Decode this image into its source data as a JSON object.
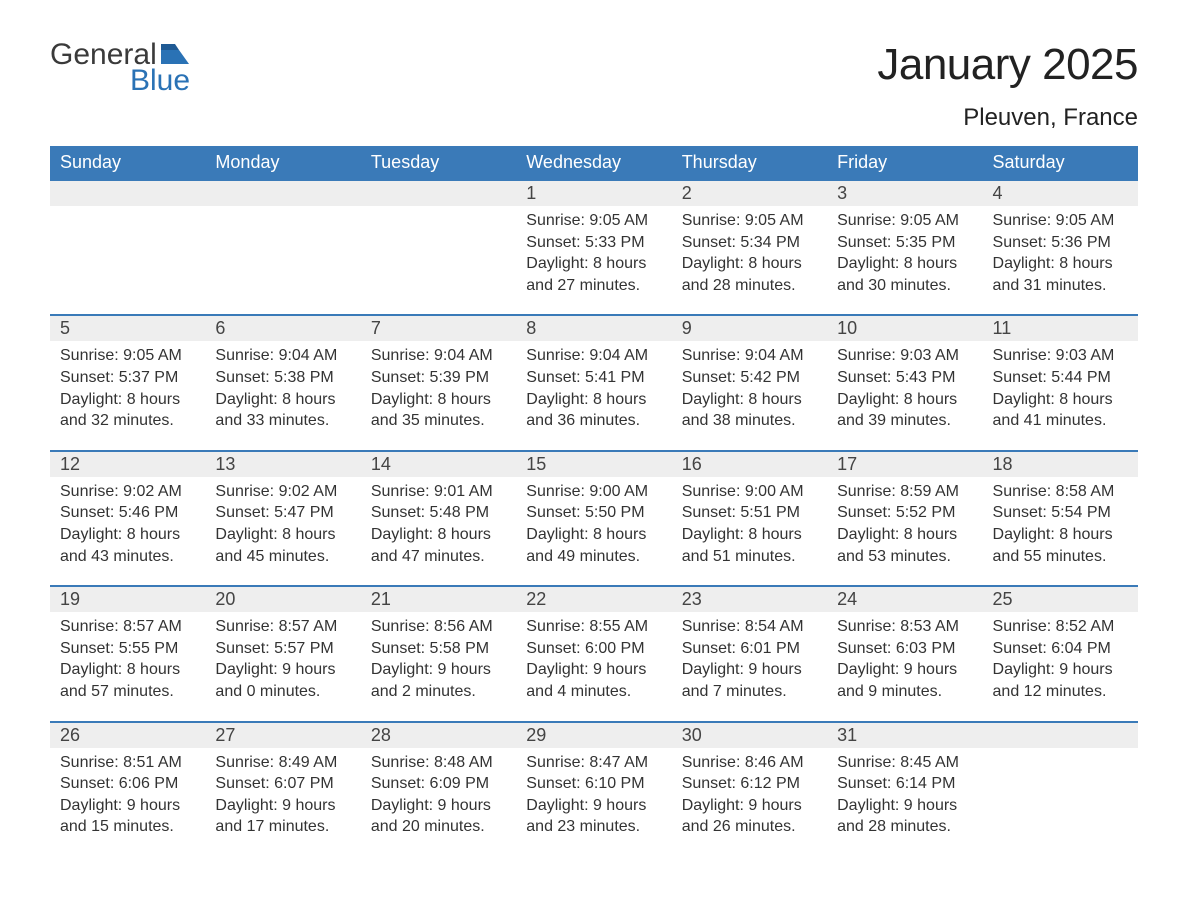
{
  "logo": {
    "line1": "General",
    "line2": "Blue"
  },
  "title": "January 2025",
  "location": "Pleuven, France",
  "colors": {
    "headerBg": "#3a7ab8",
    "headerText": "#ffffff",
    "dayNumBg": "#eeeeee",
    "rowBorder": "#3a7ab8",
    "bodyText": "#333333",
    "logoAccent": "#2a72b5"
  },
  "weekdays": [
    "Sunday",
    "Monday",
    "Tuesday",
    "Wednesday",
    "Thursday",
    "Friday",
    "Saturday"
  ],
  "weeks": [
    [
      null,
      null,
      null,
      {
        "n": "1",
        "sunrise": "Sunrise: 9:05 AM",
        "sunset": "Sunset: 5:33 PM",
        "daylight": "Daylight: 8 hours and 27 minutes."
      },
      {
        "n": "2",
        "sunrise": "Sunrise: 9:05 AM",
        "sunset": "Sunset: 5:34 PM",
        "daylight": "Daylight: 8 hours and 28 minutes."
      },
      {
        "n": "3",
        "sunrise": "Sunrise: 9:05 AM",
        "sunset": "Sunset: 5:35 PM",
        "daylight": "Daylight: 8 hours and 30 minutes."
      },
      {
        "n": "4",
        "sunrise": "Sunrise: 9:05 AM",
        "sunset": "Sunset: 5:36 PM",
        "daylight": "Daylight: 8 hours and 31 minutes."
      }
    ],
    [
      {
        "n": "5",
        "sunrise": "Sunrise: 9:05 AM",
        "sunset": "Sunset: 5:37 PM",
        "daylight": "Daylight: 8 hours and 32 minutes."
      },
      {
        "n": "6",
        "sunrise": "Sunrise: 9:04 AM",
        "sunset": "Sunset: 5:38 PM",
        "daylight": "Daylight: 8 hours and 33 minutes."
      },
      {
        "n": "7",
        "sunrise": "Sunrise: 9:04 AM",
        "sunset": "Sunset: 5:39 PM",
        "daylight": "Daylight: 8 hours and 35 minutes."
      },
      {
        "n": "8",
        "sunrise": "Sunrise: 9:04 AM",
        "sunset": "Sunset: 5:41 PM",
        "daylight": "Daylight: 8 hours and 36 minutes."
      },
      {
        "n": "9",
        "sunrise": "Sunrise: 9:04 AM",
        "sunset": "Sunset: 5:42 PM",
        "daylight": "Daylight: 8 hours and 38 minutes."
      },
      {
        "n": "10",
        "sunrise": "Sunrise: 9:03 AM",
        "sunset": "Sunset: 5:43 PM",
        "daylight": "Daylight: 8 hours and 39 minutes."
      },
      {
        "n": "11",
        "sunrise": "Sunrise: 9:03 AM",
        "sunset": "Sunset: 5:44 PM",
        "daylight": "Daylight: 8 hours and 41 minutes."
      }
    ],
    [
      {
        "n": "12",
        "sunrise": "Sunrise: 9:02 AM",
        "sunset": "Sunset: 5:46 PM",
        "daylight": "Daylight: 8 hours and 43 minutes."
      },
      {
        "n": "13",
        "sunrise": "Sunrise: 9:02 AM",
        "sunset": "Sunset: 5:47 PM",
        "daylight": "Daylight: 8 hours and 45 minutes."
      },
      {
        "n": "14",
        "sunrise": "Sunrise: 9:01 AM",
        "sunset": "Sunset: 5:48 PM",
        "daylight": "Daylight: 8 hours and 47 minutes."
      },
      {
        "n": "15",
        "sunrise": "Sunrise: 9:00 AM",
        "sunset": "Sunset: 5:50 PM",
        "daylight": "Daylight: 8 hours and 49 minutes."
      },
      {
        "n": "16",
        "sunrise": "Sunrise: 9:00 AM",
        "sunset": "Sunset: 5:51 PM",
        "daylight": "Daylight: 8 hours and 51 minutes."
      },
      {
        "n": "17",
        "sunrise": "Sunrise: 8:59 AM",
        "sunset": "Sunset: 5:52 PM",
        "daylight": "Daylight: 8 hours and 53 minutes."
      },
      {
        "n": "18",
        "sunrise": "Sunrise: 8:58 AM",
        "sunset": "Sunset: 5:54 PM",
        "daylight": "Daylight: 8 hours and 55 minutes."
      }
    ],
    [
      {
        "n": "19",
        "sunrise": "Sunrise: 8:57 AM",
        "sunset": "Sunset: 5:55 PM",
        "daylight": "Daylight: 8 hours and 57 minutes."
      },
      {
        "n": "20",
        "sunrise": "Sunrise: 8:57 AM",
        "sunset": "Sunset: 5:57 PM",
        "daylight": "Daylight: 9 hours and 0 minutes."
      },
      {
        "n": "21",
        "sunrise": "Sunrise: 8:56 AM",
        "sunset": "Sunset: 5:58 PM",
        "daylight": "Daylight: 9 hours and 2 minutes."
      },
      {
        "n": "22",
        "sunrise": "Sunrise: 8:55 AM",
        "sunset": "Sunset: 6:00 PM",
        "daylight": "Daylight: 9 hours and 4 minutes."
      },
      {
        "n": "23",
        "sunrise": "Sunrise: 8:54 AM",
        "sunset": "Sunset: 6:01 PM",
        "daylight": "Daylight: 9 hours and 7 minutes."
      },
      {
        "n": "24",
        "sunrise": "Sunrise: 8:53 AM",
        "sunset": "Sunset: 6:03 PM",
        "daylight": "Daylight: 9 hours and 9 minutes."
      },
      {
        "n": "25",
        "sunrise": "Sunrise: 8:52 AM",
        "sunset": "Sunset: 6:04 PM",
        "daylight": "Daylight: 9 hours and 12 minutes."
      }
    ],
    [
      {
        "n": "26",
        "sunrise": "Sunrise: 8:51 AM",
        "sunset": "Sunset: 6:06 PM",
        "daylight": "Daylight: 9 hours and 15 minutes."
      },
      {
        "n": "27",
        "sunrise": "Sunrise: 8:49 AM",
        "sunset": "Sunset: 6:07 PM",
        "daylight": "Daylight: 9 hours and 17 minutes."
      },
      {
        "n": "28",
        "sunrise": "Sunrise: 8:48 AM",
        "sunset": "Sunset: 6:09 PM",
        "daylight": "Daylight: 9 hours and 20 minutes."
      },
      {
        "n": "29",
        "sunrise": "Sunrise: 8:47 AM",
        "sunset": "Sunset: 6:10 PM",
        "daylight": "Daylight: 9 hours and 23 minutes."
      },
      {
        "n": "30",
        "sunrise": "Sunrise: 8:46 AM",
        "sunset": "Sunset: 6:12 PM",
        "daylight": "Daylight: 9 hours and 26 minutes."
      },
      {
        "n": "31",
        "sunrise": "Sunrise: 8:45 AM",
        "sunset": "Sunset: 6:14 PM",
        "daylight": "Daylight: 9 hours and 28 minutes."
      },
      null
    ]
  ]
}
